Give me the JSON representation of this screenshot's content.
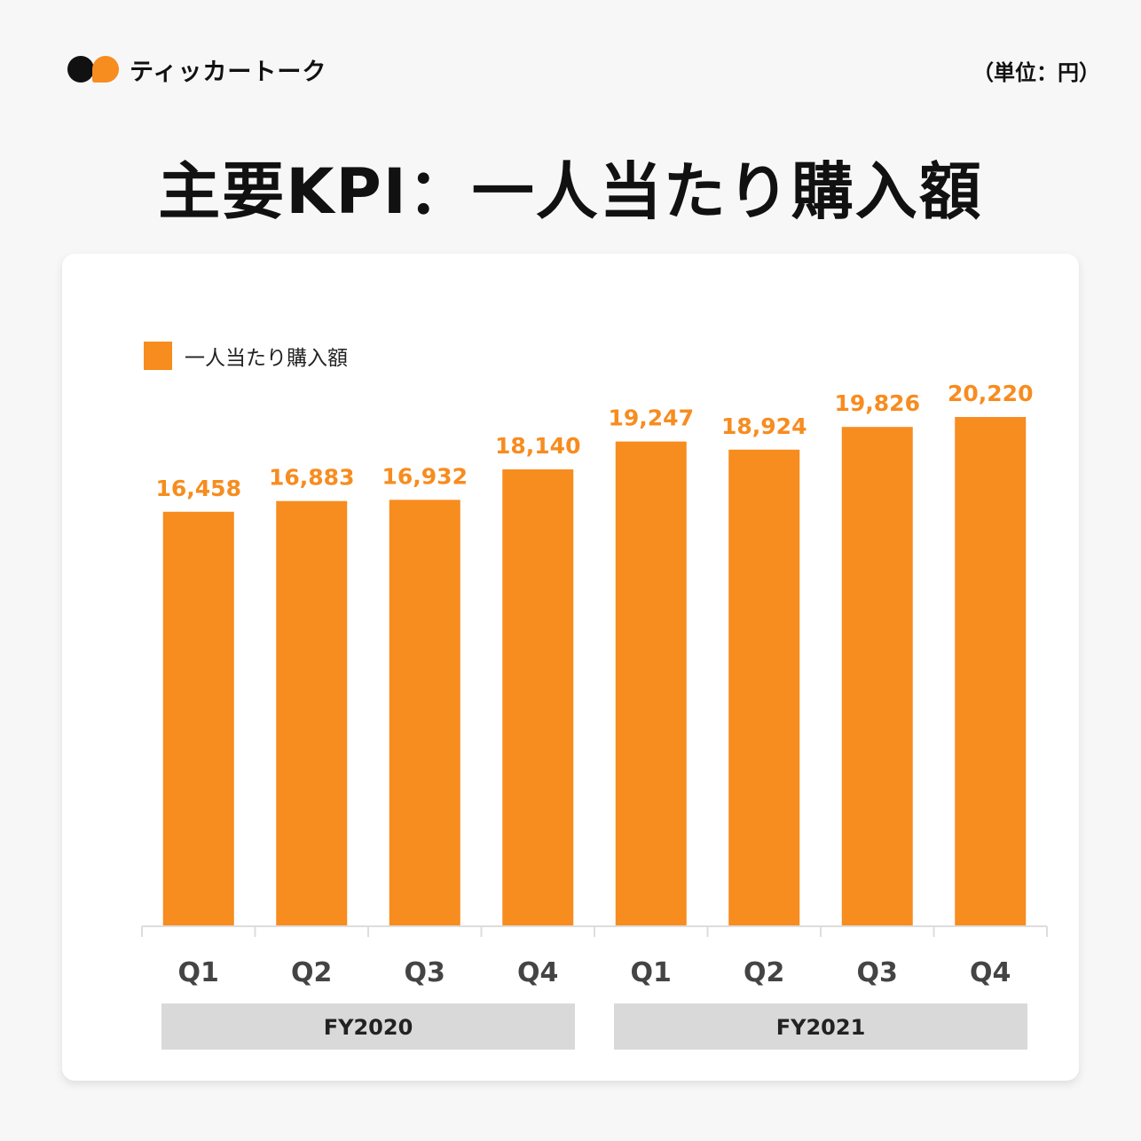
{
  "header": {
    "brand": "ティッカートーク",
    "unit": "（単位：円）",
    "title": "主要KPI：一人当たり購入額"
  },
  "colors": {
    "bar": "#f78c1f",
    "group_band": "#d9d9d9"
  },
  "chart_data": {
    "type": "bar",
    "categories": [
      "Q1",
      "Q2",
      "Q3",
      "Q4",
      "Q1",
      "Q2",
      "Q3",
      "Q4"
    ],
    "groups": [
      {
        "label": "FY2020",
        "categories": [
          "Q1",
          "Q2",
          "Q3",
          "Q4"
        ]
      },
      {
        "label": "FY2021",
        "categories": [
          "Q1",
          "Q2",
          "Q3",
          "Q4"
        ]
      }
    ],
    "series": [
      {
        "name": "一人当たり購入額",
        "values": [
          16458,
          16883,
          16932,
          18140,
          19247,
          18924,
          19826,
          20220
        ]
      }
    ],
    "data_labels": [
      "16,458",
      "16,883",
      "16,932",
      "18,140",
      "19,247",
      "18,924",
      "19,826",
      "20,220"
    ],
    "ylim": [
      0,
      20220
    ],
    "grid": false,
    "legend": "top-left"
  }
}
